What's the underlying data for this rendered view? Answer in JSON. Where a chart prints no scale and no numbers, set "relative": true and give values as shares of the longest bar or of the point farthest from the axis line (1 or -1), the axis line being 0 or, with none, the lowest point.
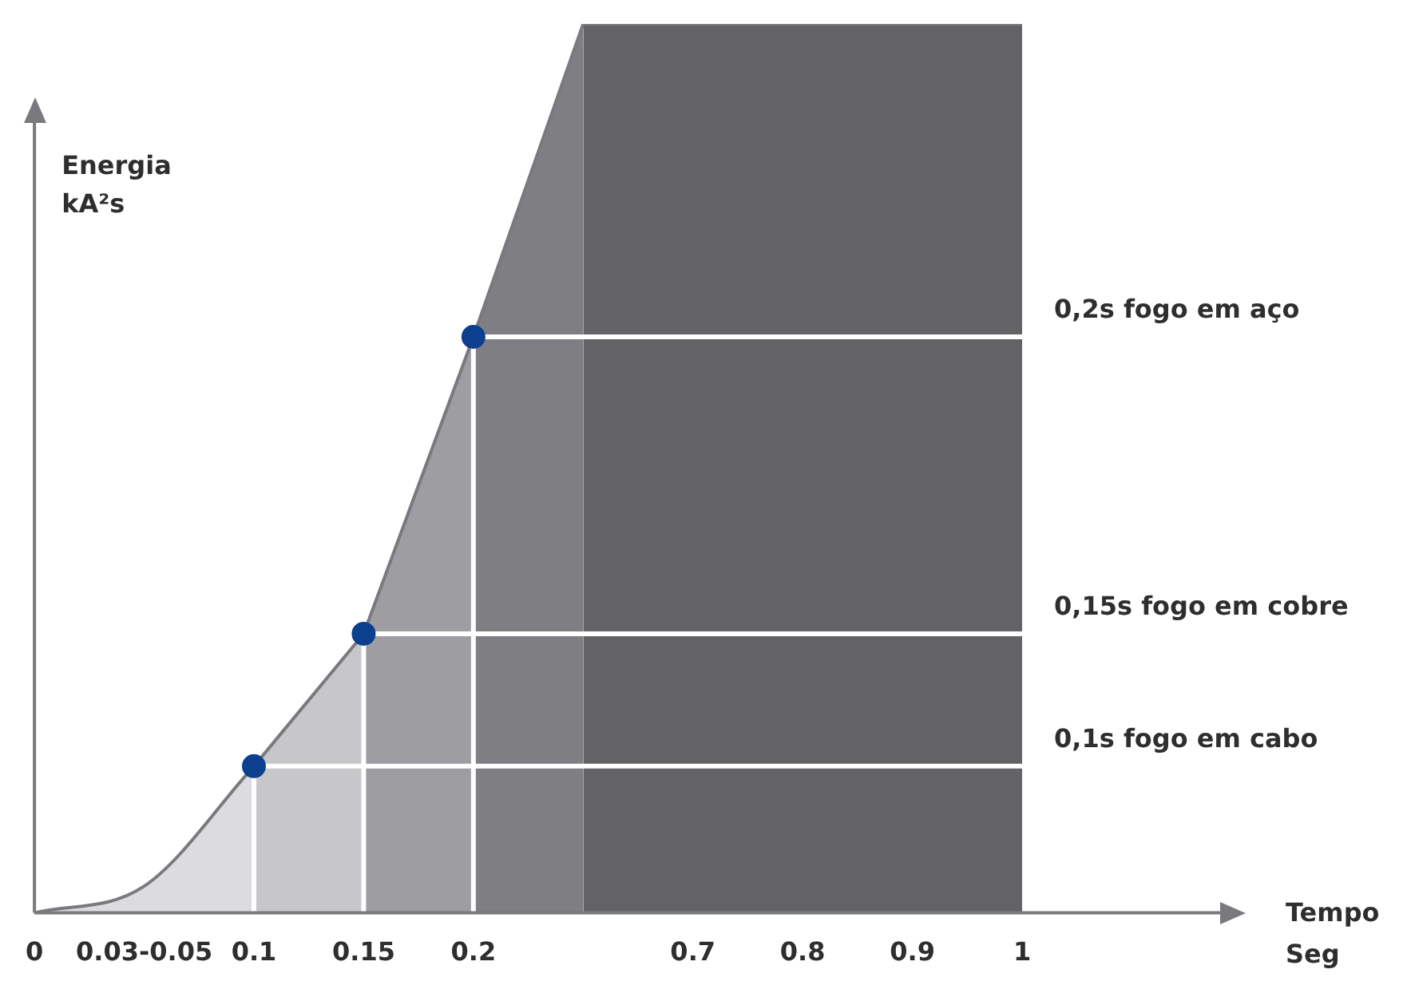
{
  "chart_data": {
    "type": "area",
    "relative": true,
    "categories": [
      "0",
      "0.03-0.05",
      "0.1",
      "0.15",
      "0.2",
      null,
      "0.7",
      "0.8",
      "0.9",
      "1"
    ],
    "annotations": [
      "Tempo Seg"
    ],
    "ylabel": "Energia kA²s",
    "series": [
      {
        "color": "#dcdcde",
        "values": [
          0,
          0.03,
          0.165,
          null,
          null,
          null,
          null,
          null,
          null,
          null
        ]
      },
      {
        "color": "#c7c7c9",
        "values": [
          null,
          null,
          0.165,
          0.314,
          null,
          null,
          null,
          null,
          null,
          null
        ]
      },
      {
        "color": "#9e9ea2",
        "values": [
          null,
          null,
          null,
          0.314,
          0.648,
          null,
          null,
          null,
          null,
          null
        ]
      },
      {
        "color": "#7f7f83",
        "values": [
          null,
          null,
          null,
          null,
          0.648,
          1,
          null,
          null,
          null,
          null
        ]
      },
      {
        "color": "#636366",
        "values": [
          null,
          null,
          null,
          null,
          null,
          1,
          1,
          1,
          1,
          1
        ]
      },
      {
        "type": "scatter",
        "color": "#0d3f8f",
        "marker": "circle",
        "x": [
          "0.1",
          "0.15",
          "0.2"
        ],
        "values": [
          0.165,
          0.314,
          0.648
        ]
      }
    ],
    "ref_lines": [
      {
        "axis": "y",
        "value": 0.648,
        "label": "0,2s fogo em aço",
        "color": "#ffffff"
      },
      {
        "axis": "y",
        "value": 0.314,
        "label": "0,15s fogo em cobre",
        "color": "#ffffff"
      },
      {
        "axis": "y",
        "value": 0.165,
        "label": "0,1s fogo em cabo",
        "color": "#ffffff"
      },
      {
        "axis": "x",
        "value": "0.1",
        "color": "#ffffff"
      },
      {
        "axis": "x",
        "value": "0.15",
        "color": "#ffffff"
      },
      {
        "axis": "x",
        "value": "0.2",
        "color": "#ffffff"
      }
    ],
    "legend": false,
    "grid": false
  }
}
